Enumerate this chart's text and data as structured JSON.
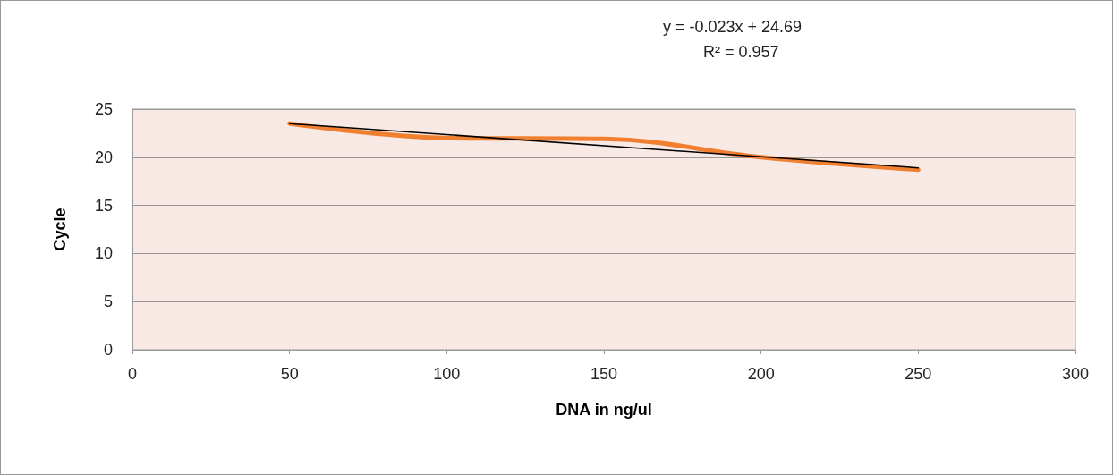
{
  "chart_data": {
    "type": "line",
    "xlabel": "DNA in ng/ul",
    "ylabel": "Cycle",
    "x": [
      50,
      100,
      150,
      200,
      250
    ],
    "series": [
      {
        "color": "#f07f30",
        "values": [
          23.5,
          22.0,
          21.9,
          20.0,
          18.7
        ]
      },
      {
        "type": "line",
        "color": "#000000",
        "x": [
          50,
          250
        ],
        "values": [
          23.5,
          18.9
        ]
      }
    ],
    "annotations": [
      "y = -0.023x + 24.69",
      "R² = 0.957"
    ],
    "xlim": [
      0,
      300
    ],
    "xticks": [
      0,
      50,
      100,
      150,
      200,
      250,
      300
    ],
    "ylim": [
      0,
      25
    ],
    "yticks": [
      0,
      5,
      10,
      15,
      20,
      25
    ],
    "grid": "y",
    "marker": "none",
    "line_style": "solid"
  }
}
